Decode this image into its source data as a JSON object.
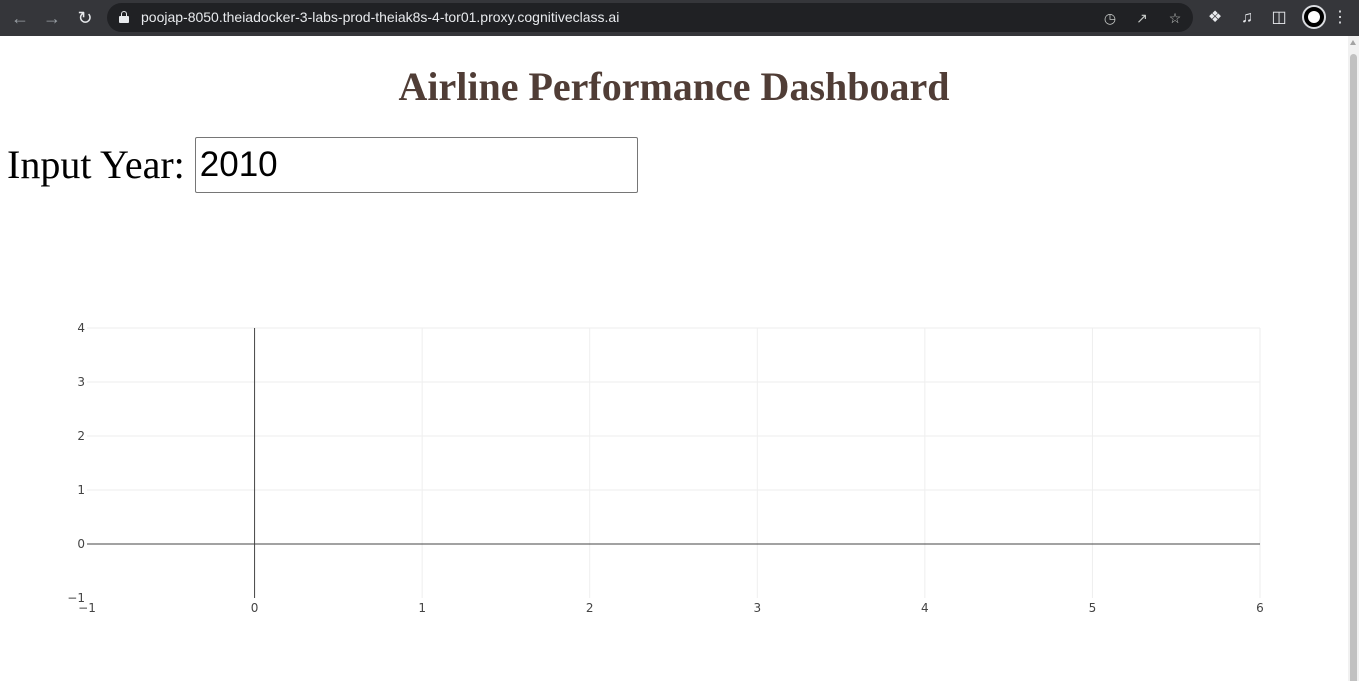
{
  "browser": {
    "url": "poojap-8050.theiadocker-3-labs-prod-theiak8s-4-tor01.proxy.cognitiveclass.ai",
    "icons": {
      "back": "arrow-left-icon",
      "forward": "arrow-right-icon",
      "reload": "reload-icon",
      "lock": "lock-icon",
      "performance": "gauge-icon",
      "share": "share-icon",
      "bookmark": "star-icon",
      "extensions": "puzzle-icon",
      "media": "media-queue-icon",
      "sidepanel": "side-panel-icon",
      "menu": "kebab-menu-icon"
    }
  },
  "page": {
    "title": "Airline Performance Dashboard",
    "input_label": "Input Year:",
    "year_value": "2010",
    "title_color": "#503D36"
  },
  "chart_data": {
    "type": "scatter",
    "title": "",
    "xlabel": "",
    "ylabel": "",
    "x": [],
    "y": [],
    "xlim": [
      -1,
      6
    ],
    "ylim": [
      -1,
      4
    ],
    "x_ticks": [
      "−1",
      "0",
      "1",
      "2",
      "3",
      "4",
      "5",
      "6"
    ],
    "y_ticks": [
      "−1",
      "0",
      "1",
      "2",
      "3",
      "4"
    ],
    "grid": true,
    "zero_lines": true
  }
}
